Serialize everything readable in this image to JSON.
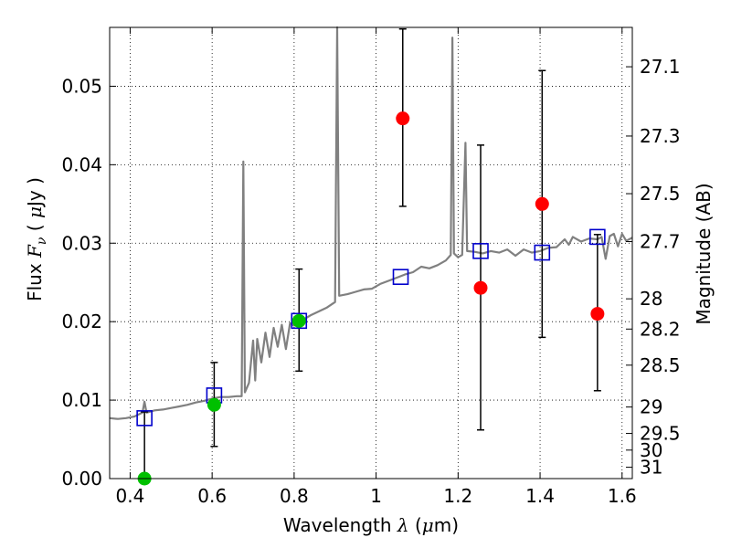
{
  "chart_data": {
    "type": "scatter",
    "xlabel": "Wavelength  λ (μm)",
    "ylabel": "Flux  F_ν ( μJy )",
    "y2label": "Magnitude (AB)",
    "xlim": [
      0.35,
      1.625
    ],
    "ylim": [
      0.0,
      0.0575
    ],
    "x_ticks": [
      0.4,
      0.6,
      0.8,
      1.0,
      1.2,
      1.4,
      1.6
    ],
    "x_tick_labels": [
      "0.4",
      "0.6",
      "0.8",
      "1",
      "1.2",
      "1.4",
      "1.6"
    ],
    "y_ticks": [
      0.0,
      0.01,
      0.02,
      0.03,
      0.04,
      0.05
    ],
    "y_tick_labels": [
      "0.00",
      "0.01",
      "0.02",
      "0.03",
      "0.04",
      "0.05"
    ],
    "y2_ticks": [
      27.1,
      27.3,
      27.5,
      27.7,
      28,
      28.2,
      28.5,
      29,
      29.5,
      30,
      31
    ],
    "y2_tick_labels": [
      "27.1",
      "27.3",
      "27.5",
      "27.7",
      "28",
      "28.2",
      "28.5",
      "29",
      "29.5",
      "30",
      "31"
    ],
    "grid": true,
    "colors": {
      "template": "#808080",
      "model": "#0000cc",
      "detection": "#00c000",
      "nondetection": "#ff0000",
      "errorbar": "#000000"
    },
    "template_spectrum": [
      [
        0.35,
        0.0077
      ],
      [
        0.37,
        0.0076
      ],
      [
        0.39,
        0.0077
      ],
      [
        0.41,
        0.0079
      ],
      [
        0.43,
        0.0084
      ],
      [
        0.435,
        0.0098
      ],
      [
        0.44,
        0.0084
      ],
      [
        0.46,
        0.0087
      ],
      [
        0.48,
        0.0088
      ],
      [
        0.5,
        0.009
      ],
      [
        0.52,
        0.0092
      ],
      [
        0.54,
        0.0094
      ],
      [
        0.56,
        0.0097
      ],
      [
        0.58,
        0.0099
      ],
      [
        0.6,
        0.0102
      ],
      [
        0.62,
        0.0104
      ],
      [
        0.64,
        0.0104
      ],
      [
        0.66,
        0.0105
      ],
      [
        0.672,
        0.0105
      ],
      [
        0.676,
        0.0404
      ],
      [
        0.68,
        0.011
      ],
      [
        0.69,
        0.0122
      ],
      [
        0.7,
        0.0176
      ],
      [
        0.705,
        0.0125
      ],
      [
        0.71,
        0.0178
      ],
      [
        0.72,
        0.0148
      ],
      [
        0.73,
        0.0186
      ],
      [
        0.74,
        0.0155
      ],
      [
        0.75,
        0.0192
      ],
      [
        0.76,
        0.0168
      ],
      [
        0.77,
        0.0196
      ],
      [
        0.78,
        0.0165
      ],
      [
        0.79,
        0.0198
      ],
      [
        0.8,
        0.0195
      ],
      [
        0.82,
        0.0202
      ],
      [
        0.84,
        0.0208
      ],
      [
        0.86,
        0.0213
      ],
      [
        0.88,
        0.0218
      ],
      [
        0.9,
        0.0225
      ],
      [
        0.905,
        0.0575
      ],
      [
        0.91,
        0.0233
      ],
      [
        0.93,
        0.0235
      ],
      [
        0.95,
        0.0238
      ],
      [
        0.97,
        0.0241
      ],
      [
        0.99,
        0.0242
      ],
      [
        1.01,
        0.0248
      ],
      [
        1.03,
        0.0252
      ],
      [
        1.05,
        0.0256
      ],
      [
        1.07,
        0.026
      ],
      [
        1.09,
        0.0263
      ],
      [
        1.11,
        0.027
      ],
      [
        1.13,
        0.0268
      ],
      [
        1.15,
        0.0272
      ],
      [
        1.17,
        0.0278
      ],
      [
        1.182,
        0.0285
      ],
      [
        1.186,
        0.0562
      ],
      [
        1.19,
        0.0287
      ],
      [
        1.2,
        0.0282
      ],
      [
        1.21,
        0.0285
      ],
      [
        1.218,
        0.0428
      ],
      [
        1.222,
        0.029
      ],
      [
        1.24,
        0.0289
      ],
      [
        1.26,
        0.0287
      ],
      [
        1.28,
        0.029
      ],
      [
        1.3,
        0.0288
      ],
      [
        1.32,
        0.0292
      ],
      [
        1.34,
        0.0284
      ],
      [
        1.36,
        0.0292
      ],
      [
        1.38,
        0.0288
      ],
      [
        1.4,
        0.029
      ],
      [
        1.42,
        0.0294
      ],
      [
        1.44,
        0.0295
      ],
      [
        1.46,
        0.0305
      ],
      [
        1.47,
        0.0298
      ],
      [
        1.48,
        0.0308
      ],
      [
        1.5,
        0.0302
      ],
      [
        1.52,
        0.0306
      ],
      [
        1.54,
        0.0305
      ],
      [
        1.55,
        0.0308
      ],
      [
        1.56,
        0.028
      ],
      [
        1.57,
        0.0309
      ],
      [
        1.58,
        0.0312
      ],
      [
        1.59,
        0.0296
      ],
      [
        1.6,
        0.0312
      ],
      [
        1.61,
        0.0303
      ],
      [
        1.625,
        0.0307
      ]
    ],
    "model_fluxes": [
      {
        "x": 0.435,
        "y": 0.0077
      },
      {
        "x": 0.605,
        "y": 0.0106
      },
      {
        "x": 0.812,
        "y": 0.0201
      },
      {
        "x": 1.06,
        "y": 0.0257
      },
      {
        "x": 1.255,
        "y": 0.029
      },
      {
        "x": 1.405,
        "y": 0.0288
      },
      {
        "x": 1.54,
        "y": 0.0308
      }
    ],
    "detections": [
      {
        "x": 0.435,
        "y": 0.0,
        "ylo": 0.0,
        "yhi": 0.0085
      },
      {
        "x": 0.605,
        "y": 0.0094,
        "ylo": 0.0041,
        "yhi": 0.0148
      },
      {
        "x": 0.812,
        "y": 0.0201,
        "ylo": 0.0137,
        "yhi": 0.0267
      }
    ],
    "nondetections": [
      {
        "x": 1.065,
        "y": 0.0459,
        "ylo": 0.0347,
        "yhi": 0.0573
      },
      {
        "x": 1.255,
        "y": 0.0243,
        "ylo": 0.0062,
        "yhi": 0.0425
      },
      {
        "x": 1.405,
        "y": 0.035,
        "ylo": 0.018,
        "yhi": 0.052
      },
      {
        "x": 1.54,
        "y": 0.021,
        "ylo": 0.0112,
        "yhi": 0.0311
      }
    ]
  }
}
